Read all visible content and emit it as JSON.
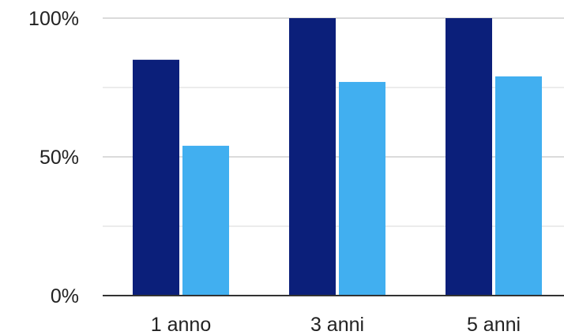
{
  "chart_data": {
    "type": "bar",
    "categories": [
      "1 anno",
      "3 anni",
      "5 anni"
    ],
    "series": [
      {
        "values": [
          85,
          100,
          100
        ],
        "color": "#0b1f7a"
      },
      {
        "values": [
          54,
          77,
          79
        ],
        "color": "#41aff0"
      }
    ],
    "ylim": [
      0,
      100
    ],
    "yticks": [
      {
        "value": 0,
        "label": "0%"
      },
      {
        "value": 50,
        "label": "50%"
      },
      {
        "value": 100,
        "label": "100%"
      }
    ],
    "minor_grid": [
      25,
      75
    ],
    "grid": true,
    "legend": "none"
  }
}
